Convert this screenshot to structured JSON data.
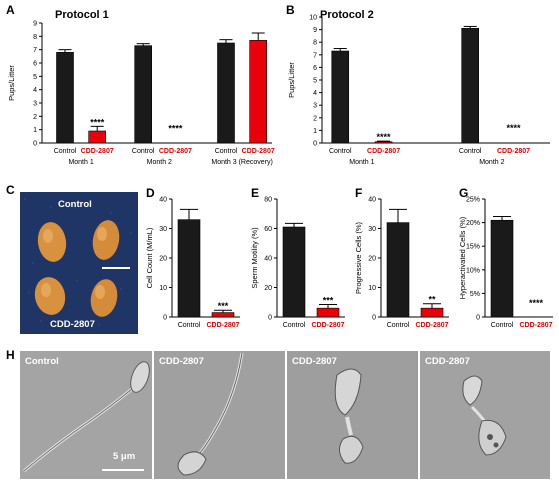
{
  "colors": {
    "control": "#1a1a1a",
    "treated": "#e8000b",
    "photo_bg": "#1f3565",
    "sem_bg": "#9a9a9a"
  },
  "panel_letters": {
    "A": "A",
    "B": "B",
    "C": "C",
    "D": "D",
    "E": "E",
    "F": "F",
    "G": "G",
    "H": "H"
  },
  "chart_data": [
    {
      "panel": "A",
      "type": "bar",
      "title": "Protocol 1",
      "ylabel": "Pups/Litter",
      "ylim": [
        0,
        9
      ],
      "yticks": [
        "0",
        "1",
        "2",
        "3",
        "4",
        "5",
        "6",
        "7",
        "8",
        "9"
      ],
      "bars": [
        {
          "label": "Control",
          "group": "Month 1",
          "value": 6.8,
          "error": 0.2,
          "series": "Control"
        },
        {
          "label": "CDD-2807",
          "group": "Month 1",
          "value": 0.9,
          "error": 0.35,
          "series": "CDD-2807",
          "sig": "****"
        },
        {
          "label": "Control",
          "group": "Month 2",
          "value": 7.3,
          "error": 0.15,
          "series": "Control"
        },
        {
          "label": "CDD-2807",
          "group": "Month 2",
          "value": 0,
          "error": 0,
          "series": "CDD-2807",
          "sig": "****"
        },
        {
          "label": "Control",
          "group": "Month 3 (Recovery)",
          "value": 7.5,
          "error": 0.25,
          "series": "Control"
        },
        {
          "label": "CDD-2807",
          "group": "Month 3 (Recovery)",
          "value": 7.7,
          "error": 0.55,
          "series": "CDD-2807"
        }
      ],
      "groups": [
        "Month 1",
        "Month 2",
        "Month 3 (Recovery)"
      ]
    },
    {
      "panel": "B",
      "type": "bar",
      "title": "Protocol 2",
      "ylabel": "Pups/Litter",
      "ylim": [
        0,
        10
      ],
      "yticks": [
        "0",
        "1",
        "2",
        "3",
        "4",
        "5",
        "6",
        "7",
        "8",
        "9",
        "10"
      ],
      "bars": [
        {
          "label": "Control",
          "group": "Month 1",
          "value": 7.3,
          "error": 0.2,
          "series": "Control"
        },
        {
          "label": "CDD-2807",
          "group": "Month 1",
          "value": 0.1,
          "error": 0.05,
          "series": "CDD-2807",
          "sig": "****"
        },
        {
          "label": "Control",
          "group": "Month 2",
          "value": 9.1,
          "error": 0.15,
          "series": "Control"
        },
        {
          "label": "CDD-2807",
          "group": "Month 2",
          "value": 0,
          "error": 0,
          "series": "CDD-2807",
          "sig": "****"
        }
      ],
      "groups": [
        "Month 1",
        "Month 2"
      ]
    },
    {
      "panel": "D",
      "type": "bar",
      "ylabel": "Cell Count (M/mL)",
      "ylim": [
        0,
        40
      ],
      "yticks": [
        "0",
        "10",
        "20",
        "30",
        "40"
      ],
      "bars": [
        {
          "label": "Control",
          "value": 33,
          "error": 3.5,
          "series": "Control"
        },
        {
          "label": "CDD-2807",
          "value": 1.5,
          "error": 0.8,
          "series": "CDD-2807",
          "sig": "***"
        }
      ]
    },
    {
      "panel": "E",
      "type": "bar",
      "ylabel": "Sperm Motility (%)",
      "ylim": [
        0,
        80
      ],
      "yticks": [
        "0",
        "20",
        "40",
        "60",
        "80"
      ],
      "bars": [
        {
          "label": "Control",
          "value": 61,
          "error": 2.5,
          "series": "Control"
        },
        {
          "label": "CDD-2807",
          "value": 6,
          "error": 2.5,
          "series": "CDD-2807",
          "sig": "***"
        }
      ]
    },
    {
      "panel": "F",
      "type": "bar",
      "ylabel": "Progressive Cells (%)",
      "ylim": [
        0,
        40
      ],
      "yticks": [
        "0",
        "10",
        "20",
        "30",
        "40"
      ],
      "bars": [
        {
          "label": "Control",
          "value": 32,
          "error": 4.5,
          "series": "Control"
        },
        {
          "label": "CDD-2807",
          "value": 3,
          "error": 1.5,
          "series": "CDD-2807",
          "sig": "**"
        }
      ]
    },
    {
      "panel": "G",
      "type": "bar",
      "ylabel": "Hyperactivated Cells (%)",
      "ylim": [
        0,
        25
      ],
      "yticks": [
        "0",
        "5%",
        "10%",
        "15%",
        "20%",
        "25%"
      ],
      "bars": [
        {
          "label": "Control",
          "value": 20.5,
          "error": 0.8,
          "series": "Control"
        },
        {
          "label": "CDD-2807",
          "value": 0,
          "error": 0,
          "series": "CDD-2807",
          "sig": "****"
        }
      ]
    }
  ],
  "photo_c": {
    "top_label": "Control",
    "bottom_label": "CDD-2807"
  },
  "sem_h": {
    "panels": [
      "Control",
      "CDD-2807",
      "CDD-2807",
      "CDD-2807"
    ],
    "scale_label": "5 μm"
  }
}
